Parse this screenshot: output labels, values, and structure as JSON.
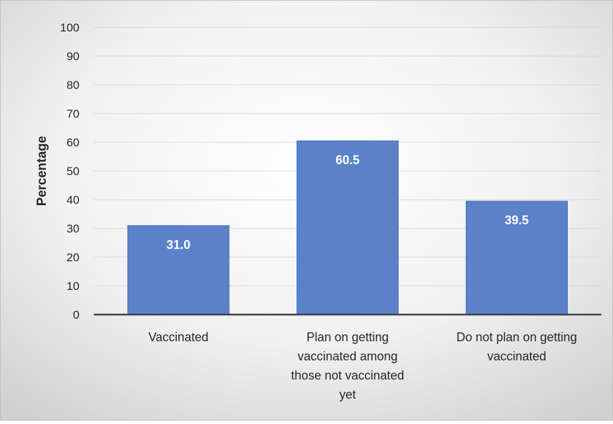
{
  "chart_data": {
    "type": "bar",
    "title": "",
    "xlabel": "",
    "ylabel": "Percentage",
    "ylim": [
      0,
      100
    ],
    "yticks": [
      0,
      10,
      20,
      30,
      40,
      50,
      60,
      70,
      80,
      90,
      100
    ],
    "grid": true,
    "legend": "none",
    "categories": [
      [
        "Vaccinated"
      ],
      [
        "Plan on getting",
        "vaccinated among",
        "those not vaccinated",
        "yet"
      ],
      [
        "Do not plan on getting",
        "vaccinated"
      ]
    ],
    "values": [
      31.0,
      60.5,
      39.5
    ],
    "data_labels": [
      "31.0",
      "60.5",
      "39.5"
    ],
    "colors": {
      "bar": "#5B82C9",
      "bar_edge": "#4A72BD",
      "data_label": "#FFFFFF",
      "gridline": "#D6D6D6",
      "axis": "#3F3F3F",
      "text": "#262626",
      "background_light": "#FFFFFF",
      "background_dark": "#D0D0D0",
      "border": "#BFBFBF"
    }
  }
}
